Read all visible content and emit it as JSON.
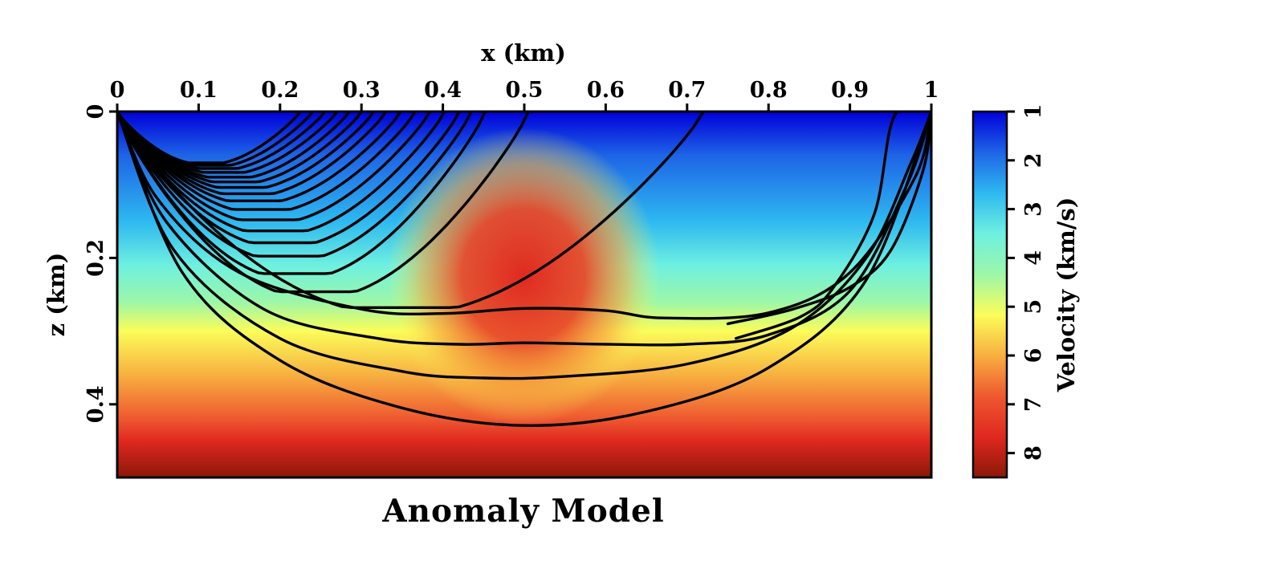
{
  "chart_data": {
    "type": "heatmap",
    "title": "Anomaly Model",
    "xlabel": "x (km)",
    "ylabel": "z (km)",
    "xlim": [
      0,
      1
    ],
    "zlim": [
      0,
      0.5
    ],
    "x_ticks": [
      "0",
      "0.1",
      "0.2",
      "0.3",
      "0.4",
      "0.5",
      "0.6",
      "0.7",
      "0.8",
      "0.9",
      "1"
    ],
    "z_ticks": [
      "0",
      "0.2",
      "0.4"
    ],
    "x_axis_position": "top",
    "colorbar": {
      "label": "Velocity (km/s)",
      "range": [
        1,
        8.5
      ],
      "ticks": [
        "1",
        "2",
        "3",
        "4",
        "5",
        "6",
        "7",
        "8"
      ],
      "position": "right",
      "colormap": [
        "#0000d8",
        "#1e64e6",
        "#2eb8f0",
        "#6ef0e0",
        "#9cf7a8",
        "#fbfd5a",
        "#f7b040",
        "#ee5830",
        "#e02820",
        "#8a1808"
      ]
    },
    "background_field": {
      "description_units": "km/s",
      "surface_velocity": 1,
      "bottom_velocity": 8.5,
      "anomaly": {
        "center_x": 0.5,
        "center_z": 0.225,
        "peak_velocity": 7.2
      }
    },
    "rays_from_source": {
      "source": [
        0,
        0
      ],
      "curves": [
        {
          "end_x": 0.225,
          "max_depth": 0.065
        },
        {
          "end_x": 0.24,
          "max_depth": 0.068
        },
        {
          "end_x": 0.255,
          "max_depth": 0.072
        },
        {
          "end_x": 0.27,
          "max_depth": 0.077
        },
        {
          "end_x": 0.285,
          "max_depth": 0.083
        },
        {
          "end_x": 0.3,
          "max_depth": 0.089
        },
        {
          "end_x": 0.315,
          "max_depth": 0.096
        },
        {
          "end_x": 0.33,
          "max_depth": 0.104
        },
        {
          "end_x": 0.348,
          "max_depth": 0.113
        },
        {
          "end_x": 0.366,
          "max_depth": 0.124
        },
        {
          "end_x": 0.384,
          "max_depth": 0.137
        },
        {
          "end_x": 0.402,
          "max_depth": 0.151
        },
        {
          "end_x": 0.42,
          "max_depth": 0.166
        },
        {
          "end_x": 0.435,
          "max_depth": 0.183
        },
        {
          "end_x": 0.452,
          "max_depth": 0.205
        },
        {
          "end_x": 0.505,
          "max_depth": 0.228
        },
        {
          "end_x": 0.72,
          "max_depth": 0.248
        }
      ]
    },
    "rays_through_anomaly": [
      {
        "points": [
          [
            0,
            0
          ],
          [
            0.05,
            0.12
          ],
          [
            0.15,
            0.22
          ],
          [
            0.3,
            0.27
          ],
          [
            0.4,
            0.276
          ],
          [
            0.5,
            0.269
          ],
          [
            0.6,
            0.272
          ],
          [
            0.67,
            0.282
          ],
          [
            0.8,
            0.275
          ],
          [
            0.9,
            0.22
          ],
          [
            0.98,
            0.09
          ],
          [
            1,
            0
          ]
        ]
      },
      {
        "points": [
          [
            0,
            0
          ],
          [
            0.06,
            0.15
          ],
          [
            0.18,
            0.27
          ],
          [
            0.32,
            0.31
          ],
          [
            0.42,
            0.318
          ],
          [
            0.5,
            0.316
          ],
          [
            0.6,
            0.318
          ],
          [
            0.7,
            0.318
          ],
          [
            0.8,
            0.305
          ],
          [
            0.9,
            0.245
          ],
          [
            0.97,
            0.1
          ],
          [
            1,
            0
          ]
        ]
      },
      {
        "points": [
          [
            0,
            0
          ],
          [
            0.07,
            0.19
          ],
          [
            0.2,
            0.31
          ],
          [
            0.35,
            0.355
          ],
          [
            0.45,
            0.364
          ],
          [
            0.55,
            0.362
          ],
          [
            0.7,
            0.345
          ],
          [
            0.83,
            0.295
          ],
          [
            0.92,
            0.2
          ],
          [
            0.975,
            0.07
          ],
          [
            1,
            0
          ]
        ]
      },
      {
        "points": [
          [
            0,
            0
          ],
          [
            0.08,
            0.22
          ],
          [
            0.2,
            0.34
          ],
          [
            0.35,
            0.405
          ],
          [
            0.5,
            0.429
          ],
          [
            0.65,
            0.41
          ],
          [
            0.8,
            0.35
          ],
          [
            0.92,
            0.23
          ],
          [
            1,
            0
          ]
        ]
      },
      {
        "points": [
          [
            1,
            0
          ],
          [
            0.955,
            0.005
          ],
          [
            0.93,
            0.14
          ],
          [
            0.88,
            0.24
          ],
          [
            0.84,
            0.28
          ],
          [
            0.76,
            0.31
          ]
        ]
      },
      {
        "points": [
          [
            1,
            0
          ],
          [
            0.99,
            0.08
          ],
          [
            0.95,
            0.19
          ],
          [
            0.9,
            0.24
          ],
          [
            0.83,
            0.27
          ],
          [
            0.75,
            0.29
          ]
        ]
      }
    ]
  }
}
